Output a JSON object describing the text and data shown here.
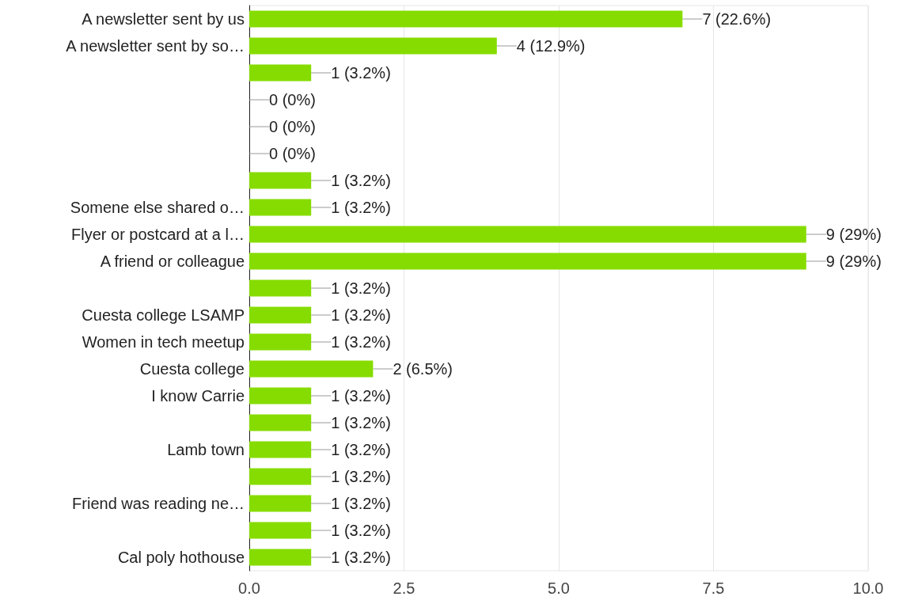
{
  "chart_data": {
    "type": "bar",
    "orientation": "horizontal",
    "categories": [
      "A newsletter sent by us",
      "A newsletter sent by so…",
      null,
      null,
      null,
      null,
      null,
      "Somene else shared o…",
      "Flyer or postcard at a l…",
      "A friend or colleague",
      null,
      "Cuesta college LSAMP",
      "Women in tech meetup",
      "Cuesta college",
      "I know Carrie",
      null,
      "Lamb town",
      null,
      "Friend was reading ne…",
      null,
      "Cal poly hothouse"
    ],
    "values": [
      7,
      4,
      1,
      0,
      0,
      0,
      1,
      1,
      9,
      9,
      1,
      1,
      1,
      2,
      1,
      1,
      1,
      1,
      1,
      1,
      1
    ],
    "value_labels": [
      "7 (22.6%)",
      "4 (12.9%)",
      "1 (3.2%)",
      "0 (0%)",
      "0 (0%)",
      "0 (0%)",
      "1 (3.2%)",
      "1 (3.2%)",
      "9 (29%)",
      "9 (29%)",
      "1 (3.2%)",
      "1 (3.2%)",
      "1 (3.2%)",
      "2 (6.5%)",
      "1 (3.2%)",
      "1 (3.2%)",
      "1 (3.2%)",
      "1 (3.2%)",
      "1 (3.2%)",
      "1 (3.2%)",
      "1 (3.2%)"
    ],
    "color": "#86dc00",
    "xlim": [
      0,
      10
    ],
    "xticks": [
      {
        "value": 0,
        "label": "0.0"
      },
      {
        "value": 2.5,
        "label": "2.5"
      },
      {
        "value": 5,
        "label": "5.0"
      },
      {
        "value": 7.5,
        "label": "7.5"
      },
      {
        "value": 10,
        "label": "10.0"
      }
    ],
    "grid": "x"
  }
}
